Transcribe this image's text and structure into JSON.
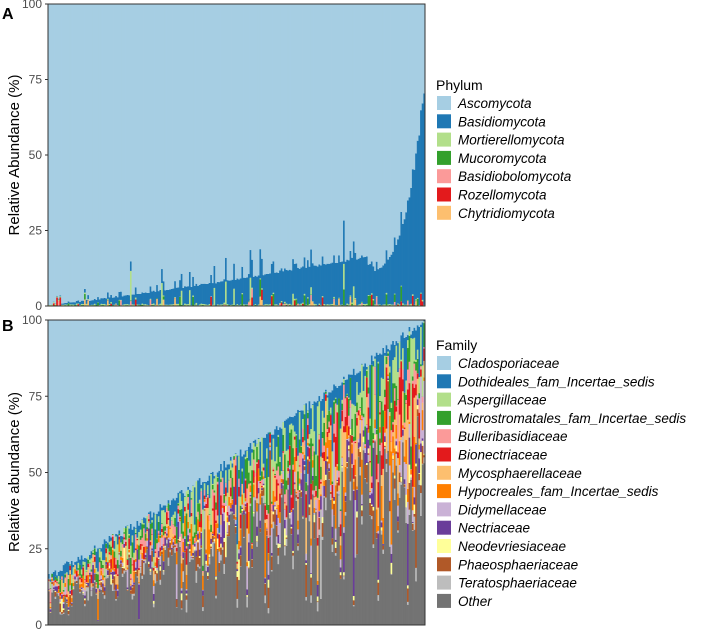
{
  "chart_data": [
    {
      "panel": "A",
      "type": "bar",
      "stacked": true,
      "ylabel": "Relative Abundance (%)",
      "ylim": [
        0,
        100
      ],
      "yticks": [
        0,
        25,
        50,
        75,
        100
      ],
      "n_samples": 230,
      "legend_title": "Phylum",
      "legend_position": "right",
      "series": [
        {
          "name": "Ascomycota",
          "color": "#A6CEE3",
          "profile": "remainder"
        },
        {
          "name": "Basidiomycota",
          "color": "#1F78B4",
          "profile": {
            "start": 0,
            "mid": 10,
            "end": 70
          }
        },
        {
          "name": "Mortierellomycota",
          "color": "#B2DF8A",
          "profile": {
            "typical": 0.5,
            "max": 10
          }
        },
        {
          "name": "Mucoromycota",
          "color": "#33A02C",
          "profile": {
            "typical": 0.2,
            "max": 8
          }
        },
        {
          "name": "Basidiobolomycota",
          "color": "#FB9A99",
          "profile": {
            "typical": 0.1,
            "max": 3
          }
        },
        {
          "name": "Rozellomycota",
          "color": "#E31A1C",
          "profile": {
            "typical": 0.1,
            "max": 4
          }
        },
        {
          "name": "Chytridiomycota",
          "color": "#FDBF6F",
          "profile": {
            "typical": 0.1,
            "max": 3
          }
        }
      ]
    },
    {
      "panel": "B",
      "type": "bar",
      "stacked": true,
      "ylabel": "Relative abundance (%)",
      "ylim": [
        0,
        100
      ],
      "yticks": [
        0,
        25,
        50,
        75,
        100
      ],
      "n_samples": 230,
      "legend_title": "Family",
      "legend_position": "right",
      "series": [
        {
          "name": "Cladosporiaceae",
          "color": "#A6CEE3",
          "profile": {
            "start": 84,
            "end": 0
          }
        },
        {
          "name": "Dothideales_fam_Incertae_sedis",
          "color": "#1F78B4"
        },
        {
          "name": "Aspergillaceae",
          "color": "#B2DF8A"
        },
        {
          "name": "Microstromatales_fam_Incertae_sedis",
          "color": "#33A02C"
        },
        {
          "name": "Bulleribasidiaceae",
          "color": "#FB9A99"
        },
        {
          "name": "Bionectriaceae",
          "color": "#E31A1C"
        },
        {
          "name": "Mycosphaerellaceae",
          "color": "#FDBF6F"
        },
        {
          "name": "Hypocreales_fam_Incertae_sedis",
          "color": "#FF7F00"
        },
        {
          "name": "Didymellaceae",
          "color": "#CAB2D6"
        },
        {
          "name": "Nectriaceae",
          "color": "#6A3D9A"
        },
        {
          "name": "Neodevriesiaceae",
          "color": "#FFFF99"
        },
        {
          "name": "Phaeosphaeriaceae",
          "color": "#B15928"
        },
        {
          "name": "Teratosphaeriaceae",
          "color": "#BDBDBD"
        },
        {
          "name": "Other",
          "color": "#737373"
        }
      ]
    }
  ]
}
